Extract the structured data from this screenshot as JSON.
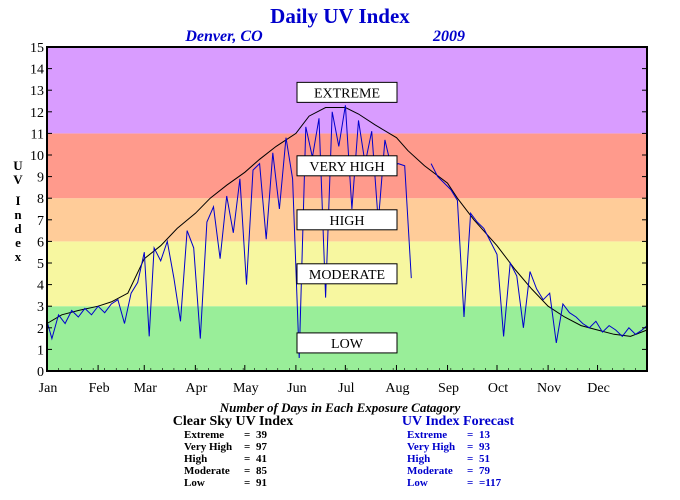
{
  "title": "Daily UV Index",
  "subtitle_location": "Denver, CO",
  "subtitle_year": "2009",
  "ylabel": "UV Index",
  "xlabel": "Number of Days in Each Exposure Catagory",
  "colors": {
    "title": "#0000cc",
    "low": "#99ee99",
    "moderate": "#f7f7a0",
    "high": "#ffcc99",
    "very_high": "#ff9a8c",
    "extreme": "#d99cff",
    "clear_sky_line": "#000000",
    "forecast_line": "#0000cc"
  },
  "chart_data": {
    "type": "line",
    "title": "Daily UV Index",
    "xlabel": "Number of Days in Each Exposure Catagory",
    "ylabel": "UV Index",
    "ylim": [
      0,
      15
    ],
    "xlim": [
      1,
      365
    ],
    "months": [
      "Jan",
      "Feb",
      "Mar",
      "Apr",
      "May",
      "Jun",
      "Jul",
      "Aug",
      "Sep",
      "Oct",
      "Nov",
      "Dec"
    ],
    "month_start_days": [
      1,
      32,
      60,
      91,
      121,
      152,
      182,
      213,
      244,
      274,
      305,
      335
    ],
    "yticks": [
      0,
      1,
      2,
      3,
      4,
      5,
      6,
      7,
      8,
      9,
      10,
      11,
      12,
      13,
      14,
      15
    ],
    "grid": false,
    "bands": [
      {
        "label": "LOW",
        "from": 0,
        "to": 3,
        "color": "#99ee99",
        "label_y": 1.3
      },
      {
        "label": "MODERATE",
        "from": 3,
        "to": 6,
        "color": "#f7f7a0",
        "label_y": 4.5
      },
      {
        "label": "HIGH",
        "from": 6,
        "to": 8,
        "color": "#ffcc99",
        "label_y": 7.0
      },
      {
        "label": "VERY HIGH",
        "from": 8,
        "to": 11,
        "color": "#ff9a8c",
        "label_y": 9.5
      },
      {
        "label": "EXTREME",
        "from": 11,
        "to": 15,
        "color": "#d99cff",
        "label_y": 12.9
      }
    ],
    "series": [
      {
        "name": "Clear Sky UV Index",
        "color": "#000000",
        "x": [
          1,
          10,
          20,
          32,
          40,
          50,
          60,
          70,
          80,
          91,
          100,
          110,
          121,
          130,
          140,
          152,
          160,
          170,
          182,
          190,
          200,
          213,
          220,
          230,
          244,
          250,
          260,
          274,
          285,
          295,
          305,
          315,
          325,
          335,
          345,
          355,
          365
        ],
        "y": [
          2.2,
          2.6,
          2.8,
          3.0,
          3.2,
          3.6,
          5.2,
          5.8,
          6.6,
          7.3,
          8.0,
          8.6,
          9.2,
          9.8,
          10.4,
          11.0,
          11.8,
          12.2,
          12.2,
          11.9,
          11.4,
          10.8,
          10.2,
          9.5,
          8.7,
          8.0,
          7.0,
          5.8,
          4.7,
          3.8,
          3.0,
          2.5,
          2.1,
          1.9,
          1.7,
          1.6,
          1.9
        ]
      },
      {
        "name": "UV Index Forecast",
        "color": "#0000cc",
        "x": [
          1,
          4,
          8,
          12,
          16,
          20,
          24,
          28,
          32,
          36,
          40,
          44,
          48,
          52,
          56,
          60,
          63,
          66,
          70,
          74,
          78,
          82,
          86,
          90,
          94,
          98,
          102,
          106,
          110,
          114,
          118,
          122,
          126,
          130,
          134,
          138,
          142,
          146,
          150,
          154,
          158,
          162,
          166,
          170,
          174,
          178,
          182,
          186,
          190,
          194,
          198,
          202,
          206,
          210,
          214,
          218,
          222,
          226,
          230,
          234,
          238,
          242,
          246,
          250,
          254,
          258,
          262,
          266,
          270,
          274,
          278,
          282,
          286,
          290,
          294,
          298,
          302,
          306,
          310,
          314,
          318,
          322,
          326,
          330,
          334,
          338,
          342,
          346,
          350,
          354,
          358,
          362,
          365
        ],
        "y": [
          2.3,
          1.5,
          2.6,
          2.2,
          2.8,
          2.5,
          2.9,
          2.6,
          3.0,
          2.7,
          3.1,
          3.3,
          2.2,
          3.6,
          4.1,
          5.5,
          1.6,
          5.7,
          5.1,
          6.0,
          4.3,
          2.3,
          6.5,
          5.7,
          1.5,
          6.9,
          7.6,
          5.2,
          8.1,
          6.4,
          8.9,
          4.0,
          9.3,
          9.6,
          6.1,
          10.1,
          7.5,
          10.8,
          8.9,
          0.6,
          11.3,
          9.9,
          11.7,
          3.4,
          12.0,
          10.4,
          12.3,
          7.5,
          11.6,
          9.6,
          11.1,
          6.9,
          10.7,
          9.4,
          9.6,
          9.5,
          4.3,
          9.8,
          2.9,
          9.6,
          9.0,
          8.7,
          8.4,
          7.9,
          2.5,
          7.3,
          6.9,
          6.6,
          6.0,
          5.4,
          1.6,
          5.0,
          4.4,
          2.0,
          4.6,
          3.8,
          3.3,
          3.6,
          1.3,
          3.1,
          2.7,
          2.5,
          2.2,
          2.0,
          2.3,
          1.8,
          2.1,
          1.9,
          1.6,
          2.0,
          1.7,
          1.9,
          2.1
        ]
      }
    ],
    "forecast_gaps": [
      [
        223,
        233
      ]
    ]
  },
  "stats": {
    "clear": {
      "header": "Clear Sky UV Index",
      "rows": [
        {
          "label": "Extreme",
          "eq": "=",
          "value": "39"
        },
        {
          "label": "Very High",
          "eq": "=",
          "value": "97"
        },
        {
          "label": "High",
          "eq": "=",
          "value": "41"
        },
        {
          "label": "Moderate",
          "eq": "=",
          "value": "85"
        },
        {
          "label": "Low",
          "eq": "=",
          "value": "91"
        }
      ]
    },
    "forecast": {
      "header": "UV Index Forecast",
      "rows": [
        {
          "label": "Extreme",
          "eq": "=",
          "value": "13"
        },
        {
          "label": "Very High",
          "eq": "=",
          "value": "93"
        },
        {
          "label": "High",
          "eq": "=",
          "value": "51"
        },
        {
          "label": "Moderate",
          "eq": "=",
          "value": "79"
        },
        {
          "label": "Low",
          "eq": "=",
          "value": "=117"
        }
      ]
    }
  }
}
